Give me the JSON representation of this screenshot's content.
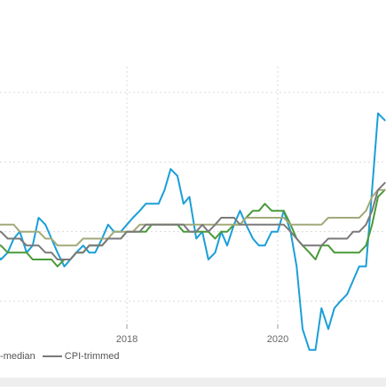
{
  "chart_data": {
    "type": "line",
    "x_ticks": [
      "2018",
      "2020"
    ],
    "xlim": [
      2015.92,
      2021.42
    ],
    "ylim": [
      0.5,
      4.5
    ],
    "gridline_values": [
      1,
      2,
      3,
      4
    ],
    "grid": true,
    "legend_placement": "bottom-left",
    "legend_visible": [
      {
        "label": "I-median",
        "color": "#4a9a3a"
      },
      {
        "label": "CPI-trimmed",
        "color": "#7a7a7a"
      }
    ],
    "series": [
      {
        "name": "",
        "color": "#1a9fd8",
        "x": [
          2015.92,
          2016.0,
          2016.08,
          2016.17,
          2016.25,
          2016.33,
          2016.42,
          2016.5,
          2016.58,
          2016.67,
          2016.75,
          2016.83,
          2016.92,
          2017.0,
          2017.08,
          2017.17,
          2017.25,
          2017.33,
          2017.42,
          2017.5,
          2017.58,
          2017.67,
          2017.75,
          2017.83,
          2017.92,
          2018.0,
          2018.08,
          2018.17,
          2018.25,
          2018.33,
          2018.42,
          2018.5,
          2018.58,
          2018.67,
          2018.75,
          2018.83,
          2018.92,
          2019.0,
          2019.08,
          2019.17,
          2019.25,
          2019.33,
          2019.42,
          2019.5,
          2019.58,
          2019.67,
          2019.75,
          2019.83,
          2019.92,
          2020.0,
          2020.08,
          2020.17,
          2020.25,
          2020.33,
          2020.42,
          2020.5,
          2020.58,
          2020.67,
          2020.75,
          2020.83,
          2020.92,
          2021.0,
          2021.08,
          2021.17,
          2021.25,
          2021.33,
          2021.42
        ],
        "values": [
          1.8,
          1.9,
          2.0,
          1.8,
          1.7,
          1.6,
          1.7,
          1.9,
          2.0,
          1.7,
          1.8,
          2.2,
          2.1,
          1.9,
          1.7,
          1.5,
          1.6,
          1.7,
          1.8,
          1.7,
          1.7,
          1.9,
          2.1,
          2.0,
          2.0,
          2.1,
          2.2,
          2.3,
          2.4,
          2.4,
          2.4,
          2.6,
          2.9,
          2.8,
          2.4,
          2.5,
          1.9,
          2.0,
          1.6,
          1.7,
          2.0,
          1.8,
          2.1,
          2.3,
          2.1,
          1.9,
          1.8,
          1.8,
          2.0,
          2.0,
          2.3,
          2.0,
          1.5,
          0.6,
          0.3,
          0.3,
          0.9,
          0.6,
          0.9,
          1.0,
          1.1,
          1.3,
          1.5,
          1.5,
          2.6,
          3.7,
          3.6
        ]
      },
      {
        "name": "I-median",
        "color": "#4a9a3a",
        "x": [
          2015.92,
          2016.0,
          2016.08,
          2016.17,
          2016.25,
          2016.33,
          2016.42,
          2016.5,
          2016.58,
          2016.67,
          2016.75,
          2016.83,
          2016.92,
          2017.0,
          2017.08,
          2017.17,
          2017.25,
          2017.33,
          2017.42,
          2017.5,
          2017.58,
          2017.67,
          2017.75,
          2017.83,
          2017.92,
          2018.0,
          2018.08,
          2018.17,
          2018.25,
          2018.33,
          2018.42,
          2018.5,
          2018.58,
          2018.67,
          2018.75,
          2018.83,
          2018.92,
          2019.0,
          2019.08,
          2019.17,
          2019.25,
          2019.33,
          2019.42,
          2019.5,
          2019.58,
          2019.67,
          2019.75,
          2019.83,
          2019.92,
          2020.0,
          2020.08,
          2020.17,
          2020.25,
          2020.33,
          2020.42,
          2020.5,
          2020.58,
          2020.67,
          2020.75,
          2020.83,
          2020.92,
          2021.0,
          2021.08,
          2021.17,
          2021.25,
          2021.33,
          2021.42
        ],
        "values": [
          2.0,
          2.0,
          2.0,
          1.9,
          1.8,
          1.8,
          1.7,
          1.7,
          1.7,
          1.7,
          1.6,
          1.6,
          1.6,
          1.6,
          1.5,
          1.6,
          1.6,
          1.7,
          1.7,
          1.8,
          1.8,
          1.8,
          1.9,
          1.9,
          1.9,
          2.0,
          2.0,
          2.0,
          2.0,
          2.1,
          2.1,
          2.1,
          2.1,
          2.1,
          2.0,
          2.0,
          2.0,
          2.0,
          2.0,
          1.9,
          2.0,
          2.0,
          2.1,
          2.1,
          2.2,
          2.3,
          2.3,
          2.4,
          2.3,
          2.3,
          2.3,
          2.1,
          1.9,
          1.8,
          1.7,
          1.6,
          1.8,
          1.8,
          1.7,
          1.7,
          1.7,
          1.7,
          1.7,
          1.8,
          2.1,
          2.5,
          2.6
        ]
      },
      {
        "name": "",
        "color": "#a3a97a",
        "x": [
          2015.92,
          2016.0,
          2016.08,
          2016.17,
          2016.25,
          2016.33,
          2016.42,
          2016.5,
          2016.58,
          2016.67,
          2016.75,
          2016.83,
          2016.92,
          2017.0,
          2017.08,
          2017.17,
          2017.25,
          2017.33,
          2017.42,
          2017.5,
          2017.58,
          2017.67,
          2017.75,
          2017.83,
          2017.92,
          2018.0,
          2018.08,
          2018.17,
          2018.25,
          2018.33,
          2018.42,
          2018.5,
          2018.58,
          2018.67,
          2018.75,
          2018.83,
          2018.92,
          2019.0,
          2019.08,
          2019.17,
          2019.25,
          2019.33,
          2019.42,
          2019.5,
          2019.58,
          2019.67,
          2019.75,
          2019.83,
          2019.92,
          2020.0,
          2020.08,
          2020.17,
          2020.25,
          2020.33,
          2020.42,
          2020.5,
          2020.58,
          2020.67,
          2020.75,
          2020.83,
          2020.92,
          2021.0,
          2021.08,
          2021.17,
          2021.25,
          2021.33,
          2021.42
        ],
        "values": [
          2.2,
          2.2,
          2.2,
          2.2,
          2.1,
          2.1,
          2.1,
          2.1,
          2.0,
          2.0,
          2.0,
          2.0,
          1.9,
          1.9,
          1.8,
          1.8,
          1.8,
          1.8,
          1.9,
          1.9,
          1.9,
          1.9,
          1.9,
          2.0,
          2.0,
          2.0,
          2.0,
          2.1,
          2.1,
          2.1,
          2.1,
          2.1,
          2.1,
          2.1,
          2.1,
          2.1,
          2.1,
          2.1,
          2.1,
          2.1,
          2.1,
          2.1,
          2.1,
          2.1,
          2.2,
          2.2,
          2.2,
          2.2,
          2.2,
          2.2,
          2.2,
          2.1,
          2.1,
          2.1,
          2.1,
          2.1,
          2.1,
          2.2,
          2.2,
          2.2,
          2.2,
          2.2,
          2.2,
          2.3,
          2.5,
          2.6,
          2.6
        ]
      },
      {
        "name": "CPI-trimmed",
        "color": "#7a7a7a",
        "x": [
          2015.92,
          2016.0,
          2016.08,
          2016.17,
          2016.25,
          2016.33,
          2016.42,
          2016.5,
          2016.58,
          2016.67,
          2016.75,
          2016.83,
          2016.92,
          2017.0,
          2017.08,
          2017.17,
          2017.25,
          2017.33,
          2017.42,
          2017.5,
          2017.58,
          2017.67,
          2017.75,
          2017.83,
          2017.92,
          2018.0,
          2018.08,
          2018.17,
          2018.25,
          2018.33,
          2018.42,
          2018.5,
          2018.58,
          2018.67,
          2018.75,
          2018.83,
          2018.92,
          2019.0,
          2019.08,
          2019.17,
          2019.25,
          2019.33,
          2019.42,
          2019.5,
          2019.58,
          2019.67,
          2019.75,
          2019.83,
          2019.92,
          2020.0,
          2020.08,
          2020.17,
          2020.25,
          2020.33,
          2020.42,
          2020.5,
          2020.58,
          2020.67,
          2020.75,
          2020.83,
          2020.92,
          2021.0,
          2021.08,
          2021.17,
          2021.25,
          2021.33,
          2021.42
        ],
        "values": [
          2.1,
          2.1,
          2.1,
          2.0,
          2.0,
          2.0,
          1.9,
          1.9,
          1.9,
          1.8,
          1.8,
          1.8,
          1.7,
          1.7,
          1.6,
          1.6,
          1.6,
          1.7,
          1.7,
          1.8,
          1.8,
          1.8,
          1.9,
          1.9,
          1.9,
          2.0,
          2.0,
          2.0,
          2.1,
          2.1,
          2.1,
          2.1,
          2.1,
          2.1,
          2.1,
          2.0,
          2.0,
          2.1,
          2.0,
          2.1,
          2.2,
          2.2,
          2.2,
          2.1,
          2.1,
          2.1,
          2.1,
          2.1,
          2.1,
          2.1,
          2.1,
          2.0,
          1.9,
          1.8,
          1.8,
          1.8,
          1.8,
          1.9,
          1.9,
          1.9,
          1.9,
          2.0,
          2.0,
          2.1,
          2.3,
          2.6,
          2.7
        ]
      }
    ]
  }
}
